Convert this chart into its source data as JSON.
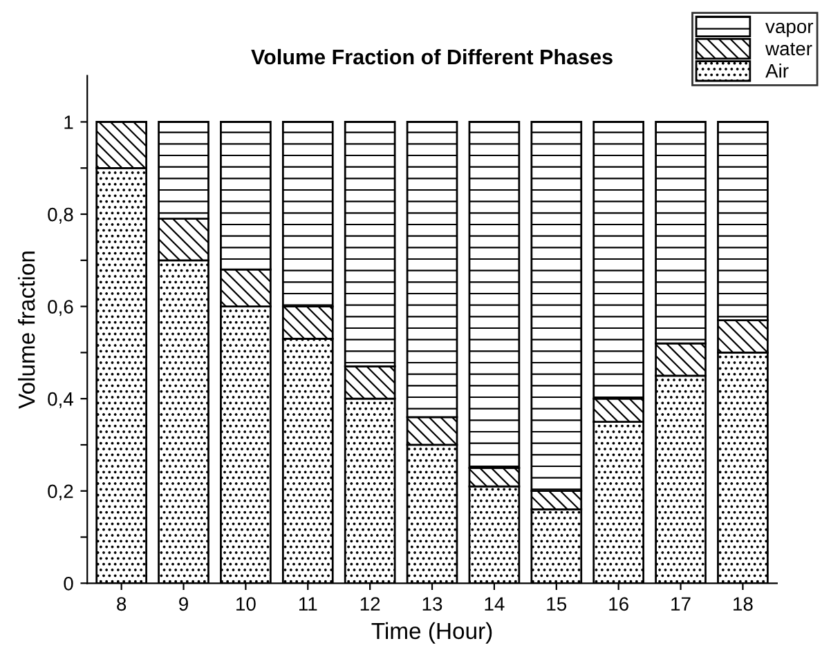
{
  "chart_data": {
    "type": "bar",
    "stacked": true,
    "title": "Volume Fraction of Different Phases",
    "xlabel": "Time (Hour)",
    "ylabel": "Volume fraction",
    "categories": [
      "8",
      "9",
      "10",
      "11",
      "12",
      "13",
      "14",
      "15",
      "16",
      "17",
      "18"
    ],
    "series": [
      {
        "name": "Air",
        "color": "#000000",
        "values": [
          0.9,
          0.7,
          0.6,
          0.53,
          0.4,
          0.3,
          0.21,
          0.16,
          0.35,
          0.45,
          0.5
        ]
      },
      {
        "name": "water",
        "color": "#000000",
        "values": [
          0.1,
          0.09,
          0.08,
          0.07,
          0.07,
          0.06,
          0.04,
          0.04,
          0.05,
          0.07,
          0.07
        ]
      },
      {
        "name": "vapor",
        "color": "#000000",
        "values": [
          0,
          0.21,
          0.32,
          0.4,
          0.53,
          0.64,
          0.75,
          0.8,
          0.6,
          0.48,
          0.43
        ]
      }
    ],
    "ylim": [
      0,
      1.1
    ],
    "yticks": [
      0,
      {
        "value": 0.1,
        "label": null
      },
      {
        "value": 0.2,
        "label": "0,2"
      },
      {
        "value": 0.3,
        "label": null
      },
      {
        "value": 0.4,
        "label": "0,4"
      },
      {
        "value": 0.5,
        "label": null
      },
      {
        "value": 0.6,
        "label": "0,6"
      },
      {
        "value": 0.7,
        "label": null
      },
      {
        "value": 0.8,
        "label": "0,8"
      },
      {
        "value": 0.9,
        "label": null
      },
      1
    ],
    "grid": false,
    "legend": "top right"
  }
}
